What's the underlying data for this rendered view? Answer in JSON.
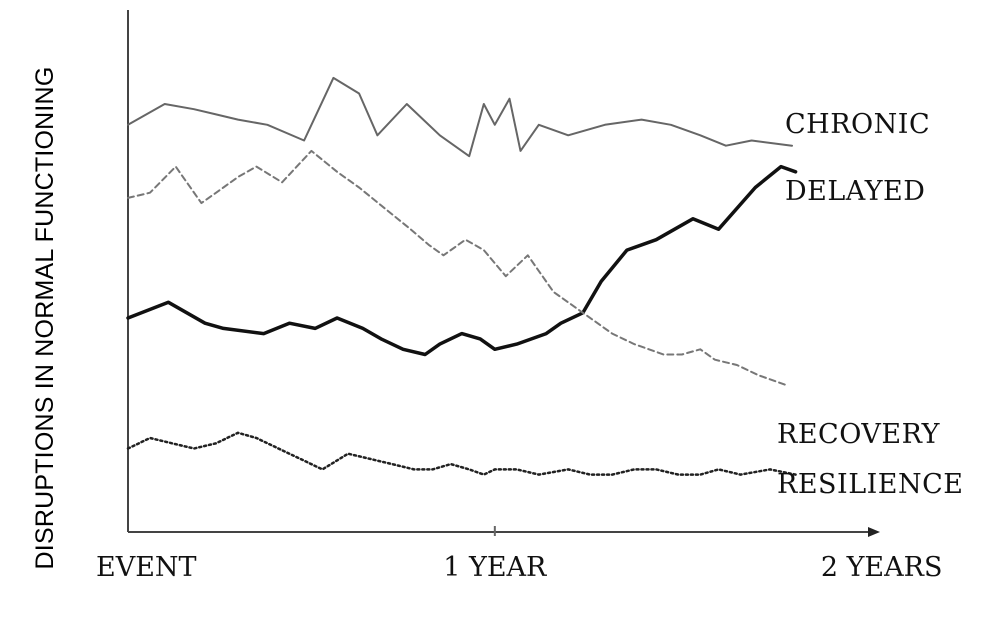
{
  "chart_data": {
    "type": "line",
    "ylabel": "DISRUPTIONS IN NORMAL FUNCTIONING",
    "xlabel": "",
    "x_ticks": [
      {
        "x": 0,
        "label": "EVENT"
      },
      {
        "x": 1,
        "label": "1 YEAR"
      },
      {
        "x": 2,
        "label": "2 YEARS"
      }
    ],
    "xlim": [
      0,
      2.05
    ],
    "ylim": [
      0,
      1
    ],
    "grid": false,
    "legend": "inline-right",
    "series": [
      {
        "name": "CHRONIC",
        "style": "solid-thin",
        "color": "#666666",
        "x": [
          0,
          0.1,
          0.18,
          0.24,
          0.3,
          0.38,
          0.48,
          0.56,
          0.63,
          0.68,
          0.76,
          0.85,
          0.93,
          0.97,
          1.0,
          1.04,
          1.07,
          1.12,
          1.2,
          1.3,
          1.4,
          1.48,
          1.56,
          1.63,
          1.7,
          1.81
        ],
        "y": [
          0.78,
          0.82,
          0.81,
          0.8,
          0.79,
          0.78,
          0.75,
          0.87,
          0.84,
          0.76,
          0.82,
          0.76,
          0.72,
          0.82,
          0.78,
          0.83,
          0.73,
          0.78,
          0.76,
          0.78,
          0.79,
          0.78,
          0.76,
          0.74,
          0.75,
          0.74
        ]
      },
      {
        "name": "DELAYED",
        "style": "solid-thick",
        "color": "#111111",
        "x": [
          0,
          0.11,
          0.21,
          0.26,
          0.37,
          0.44,
          0.51,
          0.57,
          0.64,
          0.69,
          0.75,
          0.81,
          0.85,
          0.91,
          0.96,
          1.0,
          1.06,
          1.14,
          1.18,
          1.24,
          1.29,
          1.36,
          1.44,
          1.54,
          1.61,
          1.71,
          1.78,
          1.82
        ],
        "y": [
          0.41,
          0.44,
          0.4,
          0.39,
          0.38,
          0.4,
          0.39,
          0.41,
          0.39,
          0.37,
          0.35,
          0.34,
          0.36,
          0.38,
          0.37,
          0.35,
          0.36,
          0.38,
          0.4,
          0.42,
          0.48,
          0.54,
          0.56,
          0.6,
          0.58,
          0.66,
          0.7,
          0.69
        ]
      },
      {
        "name": "RECOVERY",
        "style": "dashed",
        "color": "#777777",
        "x": [
          0,
          0.06,
          0.13,
          0.2,
          0.26,
          0.3,
          0.35,
          0.42,
          0.5,
          0.57,
          0.63,
          0.7,
          0.77,
          0.82,
          0.86,
          0.92,
          0.97,
          1.03,
          1.09,
          1.16,
          1.24,
          1.32,
          1.38,
          1.42,
          1.46,
          1.51,
          1.56,
          1.6,
          1.66,
          1.72,
          1.8
        ],
        "y": [
          0.64,
          0.65,
          0.7,
          0.63,
          0.66,
          0.68,
          0.7,
          0.67,
          0.73,
          0.69,
          0.66,
          0.62,
          0.58,
          0.55,
          0.53,
          0.56,
          0.54,
          0.49,
          0.53,
          0.46,
          0.42,
          0.38,
          0.36,
          0.35,
          0.34,
          0.34,
          0.35,
          0.33,
          0.32,
          0.3,
          0.28
        ]
      },
      {
        "name": "RESILIENCE",
        "style": "dotted",
        "color": "#222222",
        "x": [
          0,
          0.06,
          0.12,
          0.18,
          0.24,
          0.3,
          0.35,
          0.41,
          0.47,
          0.53,
          0.6,
          0.66,
          0.72,
          0.78,
          0.83,
          0.88,
          0.93,
          0.97,
          1.0,
          1.06,
          1.12,
          1.2,
          1.26,
          1.32,
          1.38,
          1.44,
          1.5,
          1.56,
          1.61,
          1.67,
          1.75,
          1.82
        ],
        "y": [
          0.16,
          0.18,
          0.17,
          0.16,
          0.17,
          0.19,
          0.18,
          0.16,
          0.14,
          0.12,
          0.15,
          0.14,
          0.13,
          0.12,
          0.12,
          0.13,
          0.12,
          0.11,
          0.12,
          0.12,
          0.11,
          0.12,
          0.11,
          0.11,
          0.12,
          0.12,
          0.11,
          0.11,
          0.12,
          0.11,
          0.12,
          0.11
        ]
      }
    ]
  }
}
